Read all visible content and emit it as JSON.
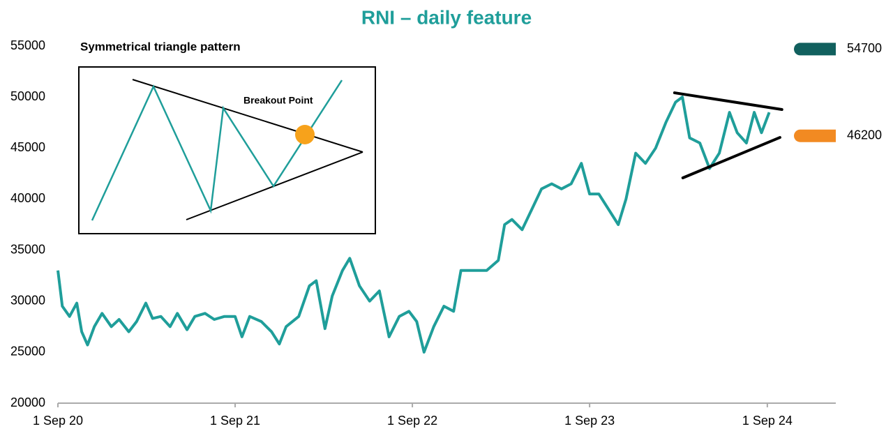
{
  "chart_data": {
    "type": "line",
    "title": "RNI – daily feature",
    "inset": {
      "title": "Symmetrical triangle pattern",
      "annotation": "Breakout Point"
    },
    "x": [
      "2020-09-01",
      "2020-09-10",
      "2020-09-25",
      "2020-10-10",
      "2020-10-20",
      "2020-11-01",
      "2020-11-15",
      "2020-12-01",
      "2020-12-20",
      "2021-01-05",
      "2021-01-25",
      "2021-02-10",
      "2021-03-01",
      "2021-03-15",
      "2021-04-01",
      "2021-04-20",
      "2021-05-05",
      "2021-05-25",
      "2021-06-10",
      "2021-07-01",
      "2021-07-20",
      "2021-08-10",
      "2021-09-01",
      "2021-09-15",
      "2021-10-01",
      "2021-10-25",
      "2021-11-15",
      "2021-12-01",
      "2021-12-15",
      "2022-01-10",
      "2022-02-01",
      "2022-02-15",
      "2022-03-05",
      "2022-03-20",
      "2022-04-10",
      "2022-04-25",
      "2022-05-15",
      "2022-06-05",
      "2022-06-25",
      "2022-07-15",
      "2022-08-05",
      "2022-08-25",
      "2022-09-10",
      "2022-09-25",
      "2022-10-15",
      "2022-11-05",
      "2022-11-25",
      "2022-12-10",
      "2023-01-05",
      "2023-02-01",
      "2023-02-25",
      "2023-03-10",
      "2023-03-25",
      "2023-04-15",
      "2023-05-05",
      "2023-05-25",
      "2023-06-15",
      "2023-07-05",
      "2023-07-25",
      "2023-08-15",
      "2023-09-01",
      "2023-09-20",
      "2023-10-10",
      "2023-10-30",
      "2023-11-15",
      "2023-12-05",
      "2023-12-25",
      "2024-01-15",
      "2024-02-05",
      "2024-02-25",
      "2024-03-10",
      "2024-03-25",
      "2024-04-15",
      "2024-05-05",
      "2024-05-25",
      "2024-06-15",
      "2024-07-01",
      "2024-07-20",
      "2024-08-05",
      "2024-08-20",
      "2024-09-05"
    ],
    "series": [
      {
        "name": "RNI",
        "color": "#1f9e9a",
        "values": [
          33000,
          29500,
          28500,
          29800,
          27000,
          25700,
          27500,
          28800,
          27500,
          28200,
          27000,
          28000,
          29800,
          28300,
          28500,
          27500,
          28800,
          27200,
          28500,
          28800,
          28200,
          28500,
          28500,
          26500,
          28500,
          28000,
          27000,
          25800,
          27500,
          28500,
          31500,
          32000,
          27300,
          30500,
          33000,
          34200,
          31500,
          30000,
          31000,
          26500,
          28500,
          29000,
          28000,
          25000,
          27500,
          29500,
          29000,
          33000,
          33000,
          33000,
          34000,
          37500,
          38000,
          37000,
          39000,
          41000,
          41500,
          41000,
          41500,
          43500,
          40500,
          40500,
          39000,
          37500,
          40000,
          44500,
          43500,
          45000,
          47500,
          49500,
          50000,
          46000,
          45500,
          43000,
          44500,
          48500,
          46500,
          45500,
          48500,
          46500,
          48500
        ]
      }
    ],
    "trendlines": [
      {
        "color": "#000000",
        "x": [
          "2024-02-23",
          "2024-10-01"
        ],
        "values": [
          50417,
          48777
        ]
      },
      {
        "color": "#000000",
        "x": [
          "2024-03-11",
          "2024-09-27"
        ],
        "values": [
          42078,
          46042
        ]
      }
    ],
    "markers": [
      {
        "value": 54700,
        "color": "#11605e"
      },
      {
        "value": 46200,
        "color": "#f28a22"
      }
    ],
    "xlim": [
      "2020-09-01",
      "2025-01-20"
    ],
    "xticks": [
      {
        "value": "2020-09-01",
        "label": "1 Sep 20"
      },
      {
        "value": "2021-09-01",
        "label": "1 Sep 21"
      },
      {
        "value": "2022-09-01",
        "label": "1 Sep 22"
      },
      {
        "value": "2023-09-01",
        "label": "1 Sep 23"
      },
      {
        "value": "2024-09-01",
        "label": "1 Sep 24"
      }
    ],
    "ylim": [
      20000,
      55000
    ],
    "yticks": [
      20000,
      25000,
      30000,
      35000,
      40000,
      45000,
      50000,
      55000
    ],
    "grid": false
  }
}
